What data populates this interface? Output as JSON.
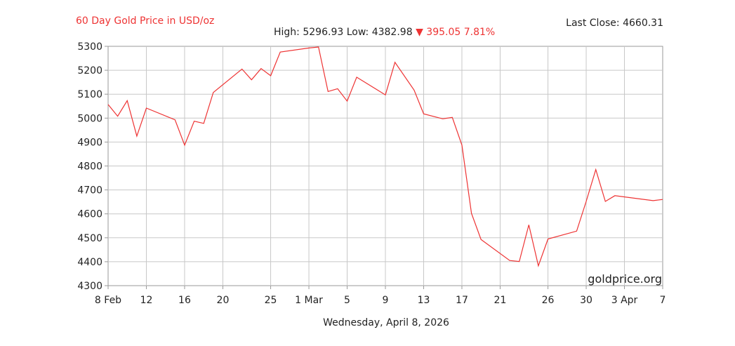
{
  "chart_data": {
    "type": "line",
    "title": "60 Day Gold Price in USD/oz",
    "last_close_label": "Last Close:",
    "last_close": "4660.31",
    "stats": {
      "high_label": "High:",
      "high": "5296.93",
      "low_label": "Low:",
      "low": "4382.98",
      "change_icon": "down-triangle-icon",
      "change": "395.05",
      "change_pct": "7.81%"
    },
    "xlabel": "Wednesday, April 8, 2026",
    "watermark": "goldprice.org",
    "ylim": [
      4300,
      5300
    ],
    "yticks": [
      "5300",
      "5200",
      "5100",
      "5000",
      "4900",
      "4800",
      "4700",
      "4600",
      "4500",
      "4400",
      "4300"
    ],
    "xlim": [
      "2026-02-08",
      "2026-04-07"
    ],
    "xticks": [
      {
        "date": "2026-02-08",
        "label": "8 Feb"
      },
      {
        "date": "2026-02-12",
        "label": "12"
      },
      {
        "date": "2026-02-16",
        "label": "16"
      },
      {
        "date": "2026-02-20",
        "label": "20"
      },
      {
        "date": "2026-02-25",
        "label": "25"
      },
      {
        "date": "2026-03-01",
        "label": "1 Mar"
      },
      {
        "date": "2026-03-05",
        "label": "5"
      },
      {
        "date": "2026-03-09",
        "label": "9"
      },
      {
        "date": "2026-03-13",
        "label": "13"
      },
      {
        "date": "2026-03-17",
        "label": "17"
      },
      {
        "date": "2026-03-21",
        "label": "21"
      },
      {
        "date": "2026-03-26",
        "label": "26"
      },
      {
        "date": "2026-03-30",
        "label": "30"
      },
      {
        "date": "2026-04-03",
        "label": "3 Apr"
      },
      {
        "date": "2026-04-07",
        "label": "7"
      }
    ],
    "grid": true,
    "line_color": "#ee3333",
    "series": [
      {
        "points": [
          [
            "2026-02-08",
            5057
          ],
          [
            "2026-02-09",
            5008
          ],
          [
            "2026-02-10",
            5073
          ],
          [
            "2026-02-11",
            4925
          ],
          [
            "2026-02-12",
            5042
          ],
          [
            "2026-02-15",
            4993
          ],
          [
            "2026-02-16",
            4887
          ],
          [
            "2026-02-17",
            4987
          ],
          [
            "2026-02-18",
            4978
          ],
          [
            "2026-02-19",
            5107
          ],
          [
            "2026-02-22",
            5205
          ],
          [
            "2026-02-23",
            5160
          ],
          [
            "2026-02-24",
            5207
          ],
          [
            "2026-02-25",
            5177
          ],
          [
            "2026-02-26",
            5276
          ],
          [
            "2026-03-01",
            5293
          ],
          [
            "2026-03-02",
            5297
          ],
          [
            "2026-03-03",
            5111
          ],
          [
            "2026-03-04",
            5123
          ],
          [
            "2026-03-05",
            5071
          ],
          [
            "2026-03-06",
            5171
          ],
          [
            "2026-03-09",
            5097
          ],
          [
            "2026-03-10",
            5233
          ],
          [
            "2026-03-12",
            5117
          ],
          [
            "2026-03-13",
            5018
          ],
          [
            "2026-03-15",
            4997
          ],
          [
            "2026-03-16",
            5003
          ],
          [
            "2026-03-17",
            4887
          ],
          [
            "2026-03-18",
            4602
          ],
          [
            "2026-03-19",
            4493
          ],
          [
            "2026-03-22",
            4405
          ],
          [
            "2026-03-23",
            4401
          ],
          [
            "2026-03-24",
            4554
          ],
          [
            "2026-03-25",
            4383
          ],
          [
            "2026-03-26",
            4495
          ],
          [
            "2026-03-29",
            4528
          ],
          [
            "2026-03-30",
            4652
          ],
          [
            "2026-03-31",
            4785
          ],
          [
            "2026-04-01",
            4652
          ],
          [
            "2026-04-02",
            4676
          ],
          [
            "2026-04-06",
            4655
          ],
          [
            "2026-04-07",
            4660
          ]
        ]
      }
    ]
  }
}
